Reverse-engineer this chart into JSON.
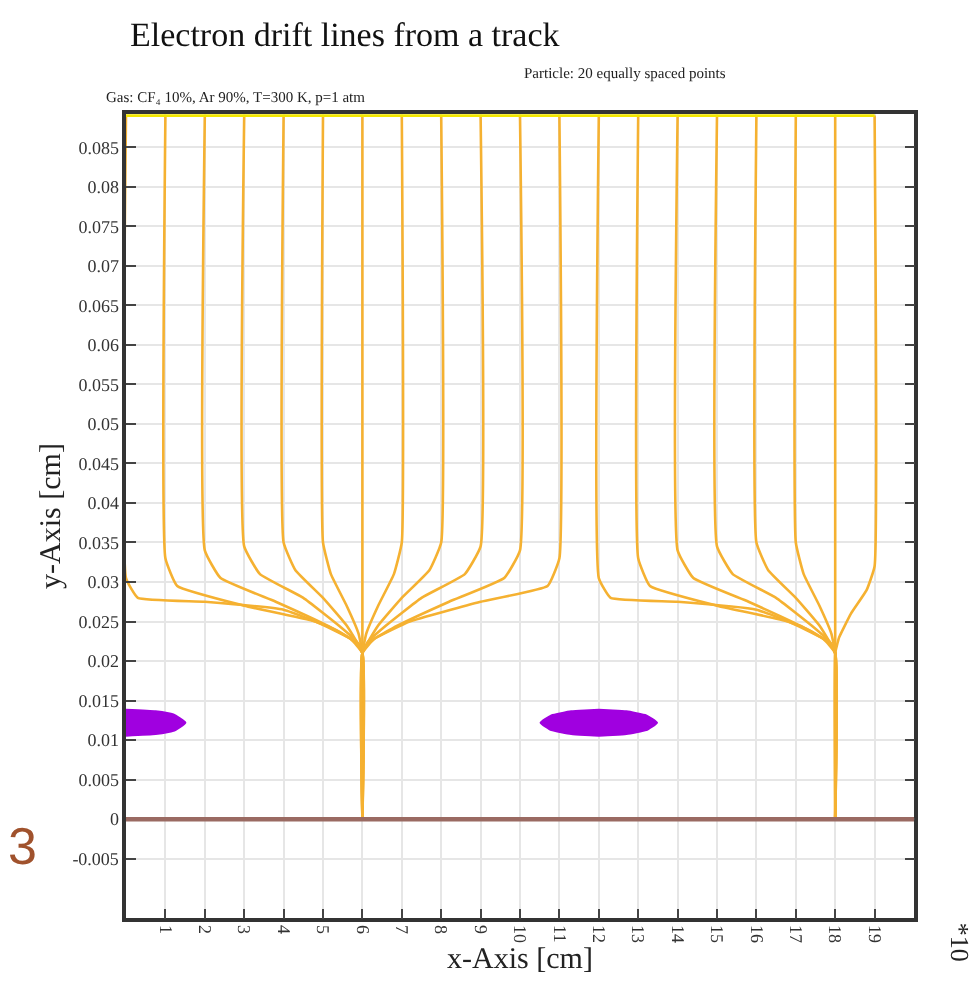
{
  "chart_data": {
    "type": "line",
    "title": "Electron drift lines from a track",
    "subtitle": "Gas: CF₄ 10%, Ar 90%, T=300 K, p=1 atm",
    "xlabel": "x-Axis [cm]",
    "ylabel": "y-Axis [cm]",
    "annotations": [
      "Particle: 20 equally spaced points",
      "*10",
      "3"
    ],
    "xlim": [
      0,
      20
    ],
    "ylim": [
      -0.0125,
      0.0892
    ],
    "xticks": [
      1,
      2,
      3,
      4,
      5,
      6,
      7,
      8,
      9,
      10,
      11,
      12,
      13,
      14,
      15,
      16,
      17,
      18,
      19
    ],
    "yticks": [
      -0.005,
      0,
      0.005,
      0.01,
      0.015,
      0.02,
      0.025,
      0.03,
      0.035,
      0.04,
      0.045,
      0.05,
      0.055,
      0.06,
      0.065,
      0.07,
      0.075,
      0.08,
      0.085
    ],
    "grid": true,
    "marker": "none",
    "line_style": "solid",
    "ref_lines": [
      {
        "axis": "y",
        "value": 0,
        "color": "#9a6a62"
      }
    ],
    "series": [
      {
        "color": "#f5b131",
        "x": [
          0,
          0,
          0.3,
          2,
          4,
          5.3,
          5.9,
          6,
          6
        ],
        "values": [
          0.089,
          0.0305,
          0.028,
          0.0275,
          0.0265,
          0.024,
          0.0222,
          0.021,
          0
        ]
      },
      {
        "color": "#f5b131",
        "x": [
          1,
          1,
          1.3,
          3,
          4.8,
          5.7,
          6,
          6
        ],
        "values": [
          0.089,
          0.033,
          0.0295,
          0.027,
          0.025,
          0.0228,
          0.021,
          0
        ]
      },
      {
        "color": "#f5b131",
        "x": [
          2,
          2,
          2.4,
          3.8,
          5.1,
          5.8,
          6,
          6
        ],
        "values": [
          0.089,
          0.034,
          0.0305,
          0.0275,
          0.0245,
          0.0225,
          0.021,
          0
        ]
      },
      {
        "color": "#f5b131",
        "x": [
          3,
          3,
          3.4,
          4.5,
          5.4,
          5.85,
          6,
          6
        ],
        "values": [
          0.089,
          0.0345,
          0.031,
          0.028,
          0.0245,
          0.0225,
          0.021,
          0
        ]
      },
      {
        "color": "#f5b131",
        "x": [
          4,
          4,
          4.3,
          5.0,
          5.6,
          6,
          6
        ],
        "values": [
          0.089,
          0.035,
          0.0315,
          0.028,
          0.0245,
          0.021,
          0
        ]
      },
      {
        "color": "#f5b131",
        "x": [
          5,
          5,
          5.2,
          5.6,
          5.9,
          6,
          6
        ],
        "values": [
          0.089,
          0.035,
          0.031,
          0.027,
          0.0235,
          0.021,
          0
        ]
      },
      {
        "color": "#f5b131",
        "x": [
          6,
          6
        ],
        "values": [
          0.089,
          0
        ]
      },
      {
        "color": "#f5b131",
        "x": [
          7,
          7,
          6.8,
          6.4,
          6.1,
          6,
          6
        ],
        "values": [
          0.089,
          0.035,
          0.031,
          0.027,
          0.0235,
          0.021,
          0
        ]
      },
      {
        "color": "#f5b131",
        "x": [
          8,
          8,
          7.7,
          7.0,
          6.4,
          6,
          6
        ],
        "values": [
          0.089,
          0.035,
          0.0315,
          0.028,
          0.0245,
          0.021,
          0
        ]
      },
      {
        "color": "#f5b131",
        "x": [
          9,
          9,
          8.6,
          7.5,
          6.6,
          6.15,
          6,
          6
        ],
        "values": [
          0.089,
          0.0345,
          0.031,
          0.028,
          0.0245,
          0.0225,
          0.021,
          0
        ]
      },
      {
        "color": "#f5b131",
        "x": [
          10,
          10,
          9.6,
          8.2,
          6.9,
          6.2,
          6,
          6
        ],
        "values": [
          0.089,
          0.034,
          0.0305,
          0.0275,
          0.0245,
          0.0225,
          0.021,
          0
        ]
      },
      {
        "color": "#f5b131",
        "x": [
          11,
          11,
          10.7,
          9,
          7.2,
          6.3,
          6,
          6
        ],
        "values": [
          0.089,
          0.033,
          0.0295,
          0.0275,
          0.025,
          0.0228,
          0.021,
          0
        ]
      },
      {
        "color": "#f5b131",
        "x": [
          12,
          12,
          12.3,
          14,
          16,
          17.3,
          17.9,
          18,
          18
        ],
        "values": [
          0.089,
          0.0305,
          0.028,
          0.0275,
          0.0265,
          0.024,
          0.0222,
          0.021,
          0
        ]
      },
      {
        "color": "#f5b131",
        "x": [
          13,
          13,
          13.3,
          15,
          16.8,
          17.7,
          18,
          18
        ],
        "values": [
          0.089,
          0.033,
          0.0295,
          0.027,
          0.025,
          0.0228,
          0.021,
          0
        ]
      },
      {
        "color": "#f5b131",
        "x": [
          14,
          14,
          14.4,
          15.8,
          17.1,
          17.8,
          18,
          18
        ],
        "values": [
          0.089,
          0.034,
          0.0305,
          0.0275,
          0.0245,
          0.0225,
          0.021,
          0
        ]
      },
      {
        "color": "#f5b131",
        "x": [
          15,
          15,
          15.4,
          16.5,
          17.4,
          17.85,
          18,
          18
        ],
        "values": [
          0.089,
          0.0345,
          0.031,
          0.028,
          0.0245,
          0.0225,
          0.021,
          0
        ]
      },
      {
        "color": "#f5b131",
        "x": [
          16,
          16,
          16.3,
          17,
          17.6,
          18,
          18
        ],
        "values": [
          0.089,
          0.035,
          0.0315,
          0.028,
          0.0245,
          0.021,
          0
        ]
      },
      {
        "color": "#f5b131",
        "x": [
          17,
          17,
          17.2,
          17.6,
          17.9,
          18,
          18
        ],
        "values": [
          0.089,
          0.035,
          0.031,
          0.027,
          0.0235,
          0.021,
          0
        ]
      },
      {
        "color": "#f5b131",
        "x": [
          18,
          18
        ],
        "values": [
          0.089,
          0
        ]
      },
      {
        "color": "#f5b131",
        "x": [
          19,
          19,
          18.8,
          18.4,
          18.1,
          18,
          18
        ],
        "values": [
          0.089,
          0.032,
          0.029,
          0.026,
          0.023,
          0.021,
          0
        ]
      },
      {
        "type": "line",
        "color": "#f2e600",
        "x": [
          0,
          19
        ],
        "values": [
          0.089,
          0.089
        ]
      },
      {
        "type": "area",
        "color": "#a000e0",
        "x": [
          0,
          0.75,
          1.2,
          1.5,
          1.2,
          0.75,
          0
        ],
        "values": [
          0.0138,
          0.0136,
          0.0132,
          0.0122,
          0.0112,
          0.0108,
          0.0106
        ]
      },
      {
        "type": "area",
        "color": "#a000e0",
        "x": [
          10.53,
          10.8,
          11.3,
          12,
          12.7,
          13.2,
          13.47,
          13.2,
          12.7,
          12,
          11.3,
          10.8,
          10.53
        ],
        "values": [
          0.0122,
          0.0131,
          0.0136,
          0.0138,
          0.0136,
          0.0131,
          0.0122,
          0.0113,
          0.0108,
          0.0106,
          0.0108,
          0.0113,
          0.0122
        ]
      }
    ]
  }
}
